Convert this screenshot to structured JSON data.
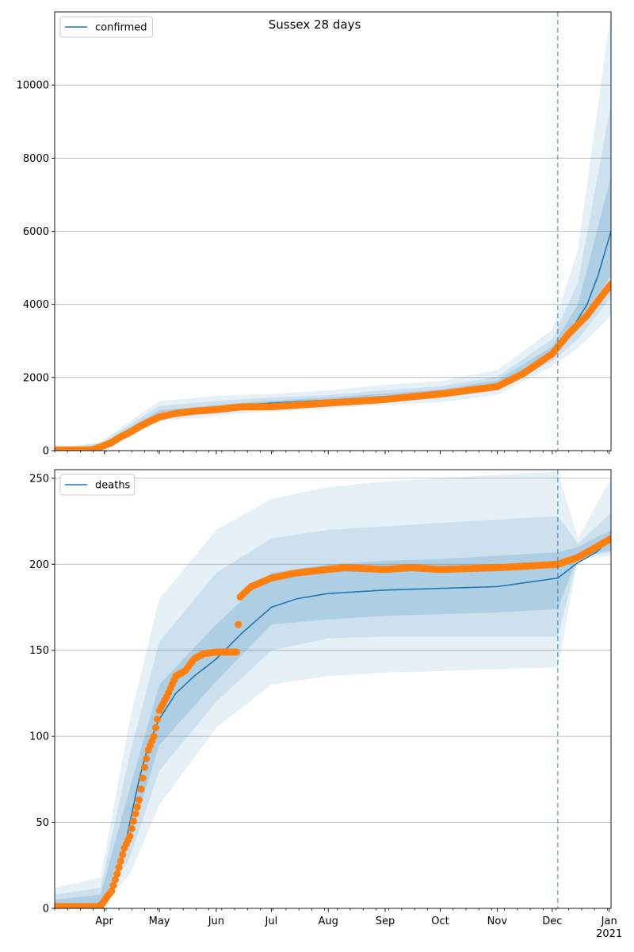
{
  "figure": {
    "title": "Sussex 28 days"
  },
  "colors": {
    "model_line": "#1f77b4",
    "observed_points": "#ff7f0e",
    "band": "#1f77b4",
    "forecast_marker": "#1f77b4",
    "grid": "#b0b0b0"
  },
  "x_axis": {
    "month_labels": [
      "Apr",
      "May",
      "Jun",
      "Jul",
      "Aug",
      "Sep",
      "Oct",
      "Nov",
      "Dec",
      "Jan"
    ],
    "month_dates": [
      "2020-04-01",
      "2020-05-01",
      "2020-06-01",
      "2020-07-01",
      "2020-08-01",
      "2020-09-01",
      "2020-10-01",
      "2020-11-01",
      "2020-12-01",
      "2021-01-01"
    ],
    "year_label": "2021",
    "range": [
      "2020-03-05",
      "2021-01-02"
    ],
    "forecast_start": "2020-12-04"
  },
  "chart_data": [
    {
      "type": "line",
      "panel": "top",
      "legend": [
        "confirmed"
      ],
      "legend_position": "top-left",
      "grid": "horizontal",
      "ylim": [
        0,
        12000
      ],
      "yticks": [
        0,
        2000,
        4000,
        6000,
        8000,
        10000
      ],
      "series": [
        {
          "name": "confirmed",
          "kind": "model",
          "points": [
            [
              "2020-03-05",
              0
            ],
            [
              "2020-03-25",
              10
            ],
            [
              "2020-03-30",
              100
            ],
            [
              "2020-04-05",
              200
            ],
            [
              "2020-04-10",
              380
            ],
            [
              "2020-04-15",
              520
            ],
            [
              "2020-04-20",
              680
            ],
            [
              "2020-04-25",
              820
            ],
            [
              "2020-05-01",
              950
            ],
            [
              "2020-05-10",
              1060
            ],
            [
              "2020-05-20",
              1120
            ],
            [
              "2020-06-01",
              1160
            ],
            [
              "2020-06-15",
              1250
            ],
            [
              "2020-07-01",
              1300
            ],
            [
              "2020-08-01",
              1380
            ],
            [
              "2020-09-01",
              1480
            ],
            [
              "2020-10-01",
              1580
            ],
            [
              "2020-11-01",
              1820
            ],
            [
              "2020-11-15",
              2150
            ],
            [
              "2020-12-01",
              2700
            ],
            [
              "2020-12-10",
              3200
            ],
            [
              "2020-12-20",
              4000
            ],
            [
              "2020-12-26",
              4800
            ],
            [
              "2021-01-02",
              6000
            ]
          ]
        },
        {
          "name": "observed",
          "kind": "scatter",
          "points": [
            [
              "2020-03-05",
              20
            ],
            [
              "2020-03-25",
              20
            ],
            [
              "2020-03-30",
              100
            ],
            [
              "2020-04-05",
              220
            ],
            [
              "2020-04-10",
              380
            ],
            [
              "2020-04-15",
              500
            ],
            [
              "2020-04-20",
              650
            ],
            [
              "2020-04-25",
              780
            ],
            [
              "2020-05-01",
              920
            ],
            [
              "2020-05-10",
              1020
            ],
            [
              "2020-05-20",
              1080
            ],
            [
              "2020-06-01",
              1120
            ],
            [
              "2020-06-15",
              1200
            ],
            [
              "2020-07-01",
              1200
            ],
            [
              "2020-08-01",
              1300
            ],
            [
              "2020-09-01",
              1400
            ],
            [
              "2020-10-01",
              1550
            ],
            [
              "2020-11-01",
              1750
            ],
            [
              "2020-11-15",
              2100
            ],
            [
              "2020-12-01",
              2650
            ],
            [
              "2020-12-10",
              3200
            ],
            [
              "2020-12-20",
              3700
            ],
            [
              "2020-12-26",
              4100
            ],
            [
              "2021-01-02",
              4550
            ]
          ]
        }
      ],
      "bands": [
        {
          "level": "outer",
          "points": [
            [
              "2020-03-05",
              0,
              50
            ],
            [
              "2020-03-30",
              40,
              240
            ],
            [
              "2020-04-15",
              380,
              800
            ],
            [
              "2020-05-01",
              800,
              1350
            ],
            [
              "2020-06-01",
              950,
              1500
            ],
            [
              "2020-07-01",
              1080,
              1550
            ],
            [
              "2020-08-01",
              1150,
              1650
            ],
            [
              "2020-09-01",
              1250,
              1800
            ],
            [
              "2020-10-01",
              1320,
              1900
            ],
            [
              "2020-11-01",
              1520,
              2200
            ],
            [
              "2020-12-01",
              2300,
              3300
            ],
            [
              "2020-12-15",
              2800,
              5500
            ],
            [
              "2021-01-02",
              3700,
              12000
            ]
          ]
        },
        {
          "level": "middle",
          "points": [
            [
              "2020-03-05",
              0,
              40
            ],
            [
              "2020-03-30",
              60,
              200
            ],
            [
              "2020-04-15",
              420,
              720
            ],
            [
              "2020-05-01",
              860,
              1220
            ],
            [
              "2020-06-01",
              1030,
              1360
            ],
            [
              "2020-07-01",
              1170,
              1450
            ],
            [
              "2020-08-01",
              1250,
              1520
            ],
            [
              "2020-09-01",
              1340,
              1650
            ],
            [
              "2020-10-01",
              1430,
              1760
            ],
            [
              "2020-11-01",
              1650,
              2020
            ],
            [
              "2020-12-01",
              2450,
              3050
            ],
            [
              "2020-12-15",
              3050,
              4600
            ],
            [
              "2021-01-02",
              4200,
              9500
            ]
          ]
        },
        {
          "level": "inner",
          "points": [
            [
              "2020-03-05",
              0,
              30
            ],
            [
              "2020-03-30",
              80,
              150
            ],
            [
              "2020-04-15",
              460,
              640
            ],
            [
              "2020-05-01",
              900,
              1100
            ],
            [
              "2020-06-01",
              1100,
              1250
            ],
            [
              "2020-07-01",
              1230,
              1370
            ],
            [
              "2020-08-01",
              1310,
              1450
            ],
            [
              "2020-09-01",
              1400,
              1560
            ],
            [
              "2020-10-01",
              1500,
              1670
            ],
            [
              "2020-11-01",
              1730,
              1920
            ],
            [
              "2020-12-01",
              2580,
              2850
            ],
            [
              "2020-12-15",
              3300,
              4000
            ],
            [
              "2021-01-02",
              4800,
              7500
            ]
          ]
        }
      ]
    },
    {
      "type": "line",
      "panel": "bottom",
      "legend": [
        "deaths"
      ],
      "legend_position": "top-left",
      "grid": "horizontal",
      "ylim": [
        0,
        255
      ],
      "yticks": [
        0,
        50,
        100,
        150,
        200,
        250
      ],
      "series": [
        {
          "name": "deaths",
          "kind": "model",
          "points": [
            [
              "2020-03-05",
              0
            ],
            [
              "2020-03-28",
              2
            ],
            [
              "2020-04-05",
              10
            ],
            [
              "2020-04-10",
              25
            ],
            [
              "2020-04-15",
              50
            ],
            [
              "2020-04-20",
              75
            ],
            [
              "2020-04-25",
              95
            ],
            [
              "2020-05-01",
              110
            ],
            [
              "2020-05-10",
              125
            ],
            [
              "2020-05-20",
              135
            ],
            [
              "2020-06-01",
              145
            ],
            [
              "2020-06-15",
              160
            ],
            [
              "2020-07-01",
              175
            ],
            [
              "2020-07-15",
              180
            ],
            [
              "2020-08-01",
              183
            ],
            [
              "2020-09-01",
              185
            ],
            [
              "2020-10-01",
              186
            ],
            [
              "2020-11-01",
              187
            ],
            [
              "2020-12-04",
              192
            ],
            [
              "2020-12-15",
              201
            ],
            [
              "2020-12-25",
              207
            ],
            [
              "2021-01-02",
              215
            ]
          ]
        },
        {
          "name": "observed",
          "kind": "scatter",
          "points": [
            [
              "2020-03-05",
              1
            ],
            [
              "2020-03-30",
              1
            ],
            [
              "2020-04-02",
              6
            ],
            [
              "2020-04-05",
              10
            ],
            [
              "2020-04-08",
              20
            ],
            [
              "2020-04-12",
              35
            ],
            [
              "2020-04-15",
              42
            ],
            [
              "2020-04-18",
              55
            ],
            [
              "2020-04-20",
              63
            ],
            [
              "2020-04-23",
              82
            ],
            [
              "2020-04-25",
              92
            ],
            [
              "2020-04-28",
              100
            ],
            [
              "2020-05-01",
              115
            ],
            [
              "2020-05-05",
              123
            ],
            [
              "2020-05-10",
              135
            ],
            [
              "2020-05-15",
              138
            ],
            [
              "2020-05-20",
              145
            ],
            [
              "2020-05-25",
              148
            ],
            [
              "2020-06-01",
              149
            ],
            [
              "2020-06-12",
              149
            ],
            [
              "2020-06-14",
              181
            ],
            [
              "2020-06-20",
              187
            ],
            [
              "2020-07-01",
              192
            ],
            [
              "2020-07-15",
              195
            ],
            [
              "2020-08-01",
              197
            ],
            [
              "2020-08-10",
              198
            ],
            [
              "2020-09-01",
              197
            ],
            [
              "2020-09-15",
              198
            ],
            [
              "2020-10-01",
              197
            ],
            [
              "2020-11-01",
              198
            ],
            [
              "2020-12-04",
              200
            ],
            [
              "2020-12-15",
              204
            ],
            [
              "2020-12-25",
              210
            ],
            [
              "2021-01-02",
              215
            ]
          ]
        }
      ],
      "bands": [
        {
          "level": "outer",
          "points": [
            [
              "2020-03-05",
              0,
              12
            ],
            [
              "2020-03-30",
              0,
              18
            ],
            [
              "2020-04-15",
              20,
              110
            ],
            [
              "2020-05-01",
              60,
              180
            ],
            [
              "2020-06-01",
              105,
              220
            ],
            [
              "2020-07-01",
              130,
              238
            ],
            [
              "2020-08-01",
              135,
              245
            ],
            [
              "2020-09-01",
              137,
              248
            ],
            [
              "2020-10-01",
              138,
              250
            ],
            [
              "2020-11-01",
              139,
              252
            ],
            [
              "2020-12-04",
              140,
              254
            ],
            [
              "2020-12-15",
              203,
              215
            ],
            [
              "2021-01-02",
              205,
              250
            ]
          ]
        },
        {
          "level": "middle",
          "points": [
            [
              "2020-03-05",
              0,
              8
            ],
            [
              "2020-03-30",
              0,
              12
            ],
            [
              "2020-04-15",
              30,
              90
            ],
            [
              "2020-05-01",
              80,
              155
            ],
            [
              "2020-06-01",
              120,
              195
            ],
            [
              "2020-07-01",
              150,
              215
            ],
            [
              "2020-08-01",
              157,
              220
            ],
            [
              "2020-09-01",
              158,
              222
            ],
            [
              "2020-10-01",
              158,
              224
            ],
            [
              "2020-11-01",
              158,
              226
            ],
            [
              "2020-12-04",
              158,
              228
            ],
            [
              "2020-12-15",
              204,
              212
            ],
            [
              "2021-01-02",
              207,
              230
            ]
          ]
        },
        {
          "level": "inner",
          "points": [
            [
              "2020-03-05",
              0,
              5
            ],
            [
              "2020-03-30",
              0,
              8
            ],
            [
              "2020-04-15",
              40,
              70
            ],
            [
              "2020-05-01",
              95,
              130
            ],
            [
              "2020-06-01",
              132,
              165
            ],
            [
              "2020-07-01",
              165,
              195
            ],
            [
              "2020-08-01",
              168,
              200
            ],
            [
              "2020-09-01",
              170,
              202
            ],
            [
              "2020-10-01",
              171,
              203
            ],
            [
              "2020-11-01",
              172,
              205
            ],
            [
              "2020-12-04",
              174,
              207
            ],
            [
              "2020-12-15",
              205,
              210
            ],
            [
              "2021-01-02",
              208,
              220
            ]
          ]
        }
      ]
    }
  ]
}
